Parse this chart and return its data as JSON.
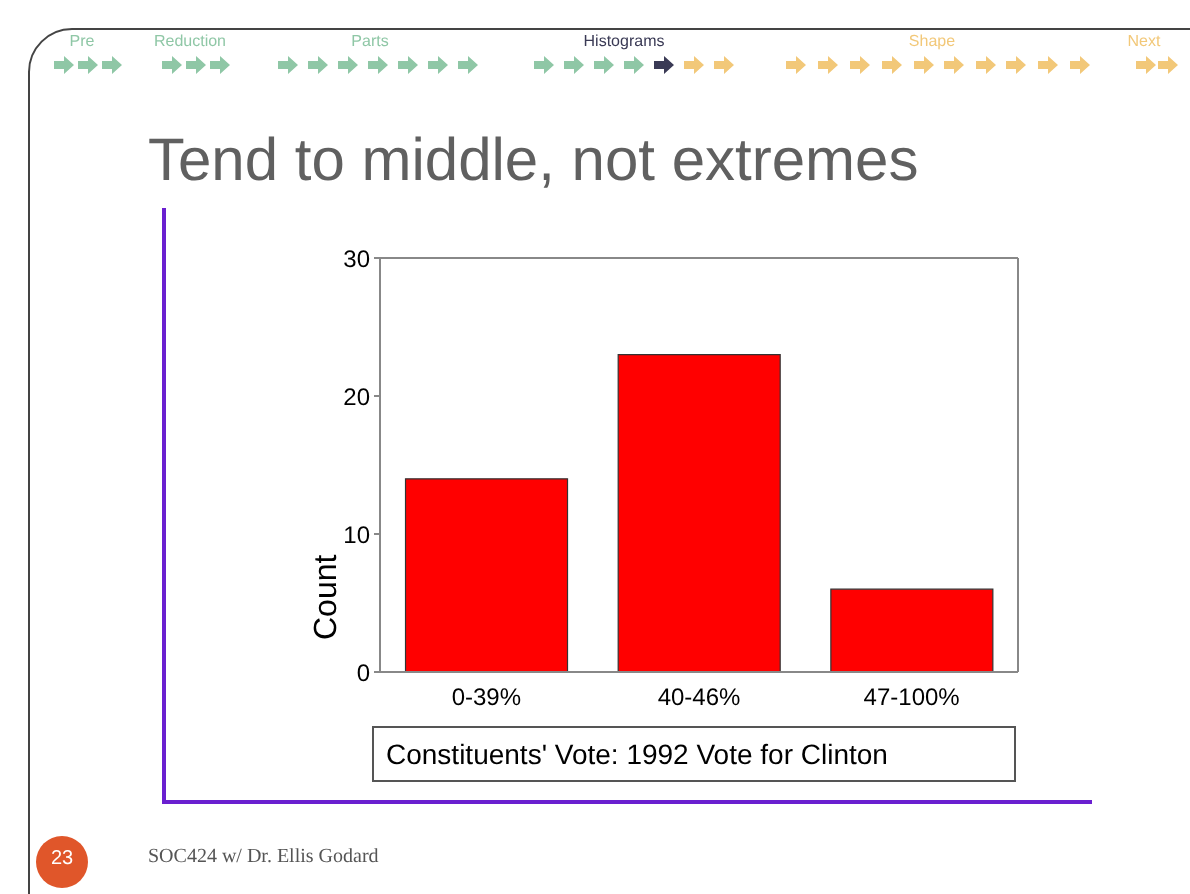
{
  "chart_data": {
    "type": "bar",
    "title": "Tend to middle, not extremes",
    "categories": [
      "0-39%",
      "40-46%",
      "47-100%"
    ],
    "values": [
      14,
      23,
      6
    ],
    "color": "#ff0000",
    "ylim": [
      0,
      30
    ],
    "yticks": [
      0,
      10,
      20,
      30
    ],
    "xlabel": "Constituents' Vote: 1992 Vote for Clinton",
    "ylabel": "Count",
    "annotations": [
      "Pre",
      "Reduction",
      "Parts",
      "Histograms",
      "Shape",
      "Next",
      "SOC424 w/ Dr. Ellis Godard",
      "23"
    ]
  }
}
